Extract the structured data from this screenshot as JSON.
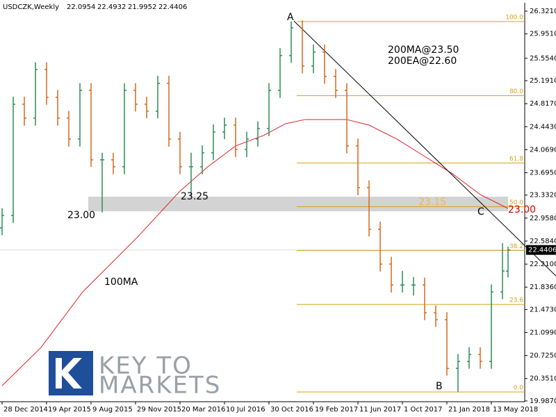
{
  "chart_data": {
    "type": "ohlc",
    "title": "USDCZK,Weekly",
    "up_color": "#2e8b57",
    "down_color": "#d2691e",
    "xlim": [
      -0.75,
      188
    ],
    "xticks": [
      {
        "value": 0,
        "label": "28 Dec 2014"
      },
      {
        "value": 16,
        "label": "19 Apr 2015"
      },
      {
        "value": 32,
        "label": "9 Aug 2015"
      },
      {
        "value": 48,
        "label": "29 Nov 2015"
      },
      {
        "value": 64,
        "label": "20 Mar 2016"
      },
      {
        "value": 80,
        "label": "10 Jul 2016"
      },
      {
        "value": 96,
        "label": "30 Oct 2016"
      },
      {
        "value": 112,
        "label": "19 Feb 2017"
      },
      {
        "value": 128,
        "label": "11 Jun 2017"
      },
      {
        "value": 144,
        "label": "1 Oct 2017"
      },
      {
        "value": 160,
        "label": "21 Jan 2018"
      },
      {
        "value": 176,
        "label": "13 May 2018"
      }
    ],
    "ylim": [
      19.975,
      26.445
    ],
    "yticks": [
      {
        "value": 26.321,
        "label": "26.3210"
      },
      {
        "value": 25.951,
        "label": "25.9510"
      },
      {
        "value": 25.554,
        "label": "25.5540"
      },
      {
        "value": 25.191,
        "label": "25.1910"
      },
      {
        "value": 24.817,
        "label": "24.8170"
      },
      {
        "value": 24.443,
        "label": "24.4430"
      },
      {
        "value": 24.069,
        "label": "24.0690"
      },
      {
        "value": 23.695,
        "label": "23.6950"
      },
      {
        "value": 23.332,
        "label": "23.3320"
      },
      {
        "value": 22.958,
        "label": "22.9580"
      },
      {
        "value": 22.584,
        "label": "22.5840"
      },
      {
        "value": 22.21,
        "label": "22.2100"
      },
      {
        "value": 21.836,
        "label": "21.8360"
      },
      {
        "value": 21.473,
        "label": "21.4730"
      },
      {
        "value": 21.099,
        "label": "21.0990"
      },
      {
        "value": 20.725,
        "label": "20.7250"
      },
      {
        "value": 20.351,
        "label": "20.3510"
      },
      {
        "value": 19.987,
        "label": "19.9870"
      }
    ],
    "bars": [
      [
        0,
        22.8,
        23.12,
        22.68,
        23.001
      ],
      [
        4,
        23.001,
        24.93,
        22.88,
        24.808
      ],
      [
        8,
        24.808,
        24.93,
        24.46,
        24.582
      ],
      [
        12,
        24.582,
        25.49,
        24.46,
        25.373
      ],
      [
        16,
        25.373,
        25.49,
        24.8,
        24.921
      ],
      [
        20,
        24.921,
        25.04,
        24.46,
        24.582
      ],
      [
        24,
        24.582,
        24.7,
        24.12,
        24.243
      ],
      [
        28,
        24.243,
        25.15,
        24.12,
        25.034
      ],
      [
        32,
        25.034,
        25.15,
        23.79,
        23.905
      ],
      [
        36,
        23.905,
        24.02,
        23.05,
        23.905
      ],
      [
        40,
        23.905,
        24.02,
        23.67,
        23.792
      ],
      [
        44,
        23.792,
        25.15,
        23.67,
        25.034
      ],
      [
        48,
        25.034,
        25.15,
        24.69,
        24.808
      ],
      [
        52,
        24.808,
        24.93,
        24.58,
        24.695
      ],
      [
        56,
        24.695,
        25.27,
        24.58,
        25.147
      ],
      [
        60,
        25.147,
        25.27,
        24.12,
        24.243
      ],
      [
        64,
        24.243,
        24.36,
        23.67,
        23.792
      ],
      [
        68,
        23.792,
        24.02,
        23.3,
        23.792
      ],
      [
        72,
        23.792,
        24.14,
        23.67,
        24.018
      ],
      [
        76,
        24.018,
        24.48,
        23.9,
        24.356
      ],
      [
        80,
        24.356,
        24.59,
        24.24,
        24.469
      ],
      [
        84,
        24.469,
        24.59,
        23.95,
        24.074
      ],
      [
        88,
        24.074,
        24.36,
        23.95,
        24.243
      ],
      [
        92,
        24.243,
        24.53,
        24.12,
        24.413
      ],
      [
        96,
        24.413,
        25.15,
        24.29,
        25.034
      ],
      [
        100,
        25.034,
        25.72,
        24.91,
        25.598
      ],
      [
        104,
        25.598,
        26.152,
        25.48,
        26.05
      ],
      [
        108,
        26.05,
        26.17,
        25.31,
        25.429
      ],
      [
        112,
        25.429,
        25.78,
        25.31,
        25.655
      ],
      [
        116,
        25.655,
        25.78,
        25.14,
        25.26
      ],
      [
        120,
        25.26,
        25.38,
        24.91,
        25.034
      ],
      [
        124,
        25.034,
        25.15,
        24.01,
        24.131
      ],
      [
        128,
        24.131,
        24.25,
        23.33,
        23.453
      ],
      [
        132,
        23.453,
        23.57,
        22.66,
        22.776
      ],
      [
        136,
        22.776,
        22.9,
        22.09,
        22.211
      ],
      [
        140,
        22.211,
        22.33,
        21.75,
        21.872
      ],
      [
        144,
        21.872,
        22.1,
        21.75,
        21.872
      ],
      [
        148,
        21.872,
        22.0,
        21.7,
        21.872
      ],
      [
        152,
        21.872,
        21.99,
        21.3,
        21.421
      ],
      [
        156,
        21.421,
        21.54,
        21.19,
        21.308
      ],
      [
        160,
        21.308,
        21.43,
        20.4,
        20.517
      ],
      [
        164,
        20.517,
        20.75,
        20.133,
        20.63
      ],
      [
        168,
        20.63,
        20.86,
        20.51,
        20.743
      ],
      [
        172,
        20.743,
        20.86,
        20.51,
        20.63
      ],
      [
        176,
        20.63,
        21.88,
        20.51,
        21.759
      ],
      [
        180,
        21.759,
        22.55,
        21.64,
        22.098
      ],
      [
        182,
        22.0954,
        22.4932,
        21.9952,
        22.4406
      ]
    ],
    "ma": {
      "color": "#e0202a",
      "x": [
        0,
        14,
        29,
        49,
        64,
        74,
        84,
        94,
        102,
        109,
        117,
        124,
        132,
        142,
        152,
        162,
        172,
        182
      ],
      "values": [
        20.235,
        20.856,
        21.759,
        22.663,
        23.397,
        23.792,
        24.131,
        24.3,
        24.492,
        24.56,
        24.56,
        24.56,
        24.469,
        24.243,
        23.961,
        23.679,
        23.34,
        23.114
      ]
    },
    "trendline": [
      [
        105,
        26.16
      ],
      [
        200,
        21.985
      ]
    ],
    "fib": {
      "color": "#d4a017",
      "from_x": 106,
      "levels": [
        {
          "label": "100.0",
          "price": 26.152
        },
        {
          "label": "80.0",
          "price": 24.948
        },
        {
          "label": "61.8",
          "price": 23.852
        },
        {
          "label": "50.0",
          "price": 23.143
        },
        {
          "label": "38.2",
          "price": 22.433
        },
        {
          "label": "23.6",
          "price": 21.554
        },
        {
          "label": "0.0",
          "price": 20.133
        }
      ]
    },
    "zone": {
      "low": 23.069,
      "high": 23.306,
      "from_x": 31,
      "to_x": 182
    },
    "annotations": [
      "A",
      "B",
      "C",
      "200MA@23.50",
      "200EA@22.60",
      "23.25",
      "23.00",
      "23.15",
      "23.00",
      "100MA"
    ]
  },
  "logo": {
    "line1": "KEY TO",
    "line2": "MARKETS"
  }
}
